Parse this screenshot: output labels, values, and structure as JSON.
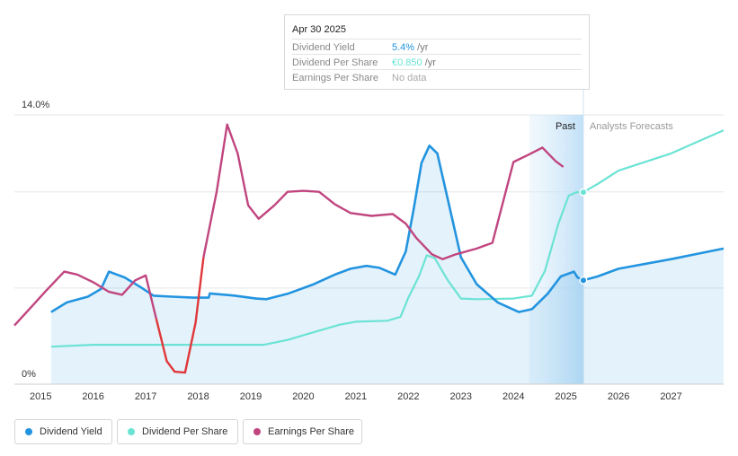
{
  "tooltip": {
    "date": "Apr 30 2025",
    "rows": [
      {
        "label": "Dividend Yield",
        "value": "5.4%",
        "unit": "/yr",
        "color": "#2394df"
      },
      {
        "label": "Dividend Per Share",
        "value": "€0.850",
        "unit": "/yr",
        "color": "#6be3d4"
      },
      {
        "label": "Earnings Per Share",
        "value": "No data",
        "unit": "",
        "color": "#aaaaaa"
      }
    ]
  },
  "legend": [
    {
      "label": "Dividend Yield",
      "color": "#2394df"
    },
    {
      "label": "Dividend Per Share",
      "color": "#6be3d4"
    },
    {
      "label": "Earnings Per Share",
      "color": "#c0457f"
    }
  ],
  "chart_data": {
    "type": "line",
    "y_tick_labels": [
      "14.0%",
      "0%"
    ],
    "ylim": [
      0,
      14
    ],
    "x_range": [
      2014.5,
      2028
    ],
    "x_ticks": [
      2015,
      2016,
      2017,
      2018,
      2019,
      2020,
      2021,
      2022,
      2023,
      2024,
      2025,
      2026,
      2027
    ],
    "x_tick_labels": [
      "2015",
      "2016",
      "2017",
      "2018",
      "2019",
      "2020",
      "2021",
      "2022",
      "2023",
      "2024",
      "2025",
      "2026",
      "2027"
    ],
    "past_label": "Past",
    "forecast_label": "Analysts Forecasts",
    "past_band_start": 2024.3,
    "now": 2025.33,
    "colors": {
      "dividend_yield": "#2394df",
      "dividend_per_share": "#6be3d4",
      "earnings_per_share": "#c0457f",
      "eps_negative": "#e0373a"
    },
    "series": [
      {
        "name": "Dividend Yield",
        "key": "dy",
        "points": [
          [
            2015.2,
            3.75
          ],
          [
            2015.5,
            4.25
          ],
          [
            2015.9,
            4.55
          ],
          [
            2016.15,
            4.95
          ],
          [
            2016.3,
            5.85
          ],
          [
            2016.6,
            5.55
          ],
          [
            2016.9,
            5.05
          ],
          [
            2017.15,
            4.6
          ],
          [
            2017.5,
            4.55
          ],
          [
            2017.9,
            4.5
          ],
          [
            2018.2,
            4.5
          ],
          [
            2018.22,
            4.72
          ],
          [
            2018.7,
            4.6
          ],
          [
            2019.1,
            4.45
          ],
          [
            2019.3,
            4.42
          ],
          [
            2019.7,
            4.7
          ],
          [
            2020.2,
            5.2
          ],
          [
            2020.6,
            5.7
          ],
          [
            2020.9,
            6.0
          ],
          [
            2021.2,
            6.15
          ],
          [
            2021.45,
            6.05
          ],
          [
            2021.75,
            5.7
          ],
          [
            2021.95,
            6.9
          ],
          [
            2022.1,
            9.1
          ],
          [
            2022.25,
            11.5
          ],
          [
            2022.4,
            12.4
          ],
          [
            2022.55,
            12.0
          ],
          [
            2022.8,
            9.0
          ],
          [
            2023.0,
            6.6
          ],
          [
            2023.3,
            5.2
          ],
          [
            2023.7,
            4.25
          ],
          [
            2024.1,
            3.75
          ],
          [
            2024.35,
            3.9
          ],
          [
            2024.65,
            4.7
          ],
          [
            2024.9,
            5.6
          ],
          [
            2025.15,
            5.85
          ],
          [
            2025.22,
            5.55
          ],
          [
            2025.33,
            5.4
          ],
          [
            2025.6,
            5.6
          ],
          [
            2026.0,
            6.0
          ],
          [
            2027.0,
            6.5
          ],
          [
            2028.0,
            7.05
          ]
        ]
      },
      {
        "name": "Dividend Per Share",
        "key": "dps",
        "points": [
          [
            2015.2,
            1.95
          ],
          [
            2016.0,
            2.05
          ],
          [
            2017.0,
            2.05
          ],
          [
            2018.0,
            2.05
          ],
          [
            2019.25,
            2.05
          ],
          [
            2019.7,
            2.3
          ],
          [
            2020.2,
            2.7
          ],
          [
            2020.7,
            3.1
          ],
          [
            2021.0,
            3.25
          ],
          [
            2021.6,
            3.3
          ],
          [
            2021.85,
            3.5
          ],
          [
            2022.0,
            4.5
          ],
          [
            2022.2,
            5.6
          ],
          [
            2022.35,
            6.7
          ],
          [
            2022.5,
            6.55
          ],
          [
            2022.75,
            5.4
          ],
          [
            2023.0,
            4.45
          ],
          [
            2023.3,
            4.42
          ],
          [
            2024.0,
            4.45
          ],
          [
            2024.35,
            4.6
          ],
          [
            2024.6,
            5.9
          ],
          [
            2024.85,
            8.3
          ],
          [
            2025.05,
            9.8
          ],
          [
            2025.2,
            9.98
          ],
          [
            2025.33,
            9.98
          ],
          [
            2025.6,
            10.4
          ],
          [
            2026.0,
            11.1
          ],
          [
            2027.0,
            12.0
          ],
          [
            2028.0,
            13.2
          ]
        ]
      },
      {
        "name": "Earnings Per Share",
        "key": "eps",
        "points": [
          [
            2014.5,
            3.05
          ],
          [
            2014.8,
            3.95
          ],
          [
            2015.1,
            4.85
          ],
          [
            2015.45,
            5.85
          ],
          [
            2015.7,
            5.7
          ],
          [
            2016.0,
            5.3
          ],
          [
            2016.3,
            4.8
          ],
          [
            2016.55,
            4.65
          ],
          [
            2016.8,
            5.4
          ],
          [
            2017.0,
            5.65
          ],
          [
            2017.2,
            3.4
          ],
          [
            2017.4,
            1.2
          ],
          [
            2017.55,
            0.65
          ],
          [
            2017.75,
            0.6
          ],
          [
            2017.95,
            3.2
          ],
          [
            2018.1,
            6.6
          ],
          [
            2018.35,
            10.0
          ],
          [
            2018.55,
            13.5
          ],
          [
            2018.75,
            12.0
          ],
          [
            2018.95,
            9.3
          ],
          [
            2019.15,
            8.6
          ],
          [
            2019.45,
            9.3
          ],
          [
            2019.7,
            10.0
          ],
          [
            2020.0,
            10.05
          ],
          [
            2020.3,
            10.0
          ],
          [
            2020.6,
            9.35
          ],
          [
            2020.9,
            8.9
          ],
          [
            2021.3,
            8.75
          ],
          [
            2021.7,
            8.85
          ],
          [
            2021.95,
            8.35
          ],
          [
            2022.15,
            7.6
          ],
          [
            2022.45,
            6.75
          ],
          [
            2022.65,
            6.5
          ],
          [
            2022.9,
            6.75
          ],
          [
            2023.3,
            7.05
          ],
          [
            2023.6,
            7.35
          ],
          [
            2024.0,
            11.55
          ],
          [
            2024.3,
            11.95
          ],
          [
            2024.55,
            12.3
          ],
          [
            2024.8,
            11.6
          ],
          [
            2024.95,
            11.3
          ]
        ]
      }
    ]
  }
}
